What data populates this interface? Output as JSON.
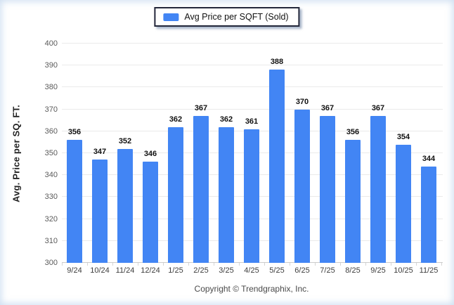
{
  "legend": {
    "label": "Avg Price per SQFT (Sold)",
    "swatch_color": "#4285f4"
  },
  "chart_data": {
    "type": "bar",
    "title": "Avg Price per SQFT (Sold)",
    "categories": [
      "9/24",
      "10/24",
      "11/24",
      "12/24",
      "1/25",
      "2/25",
      "3/25",
      "4/25",
      "5/25",
      "6/25",
      "7/25",
      "8/25",
      "9/25",
      "10/25",
      "11/25"
    ],
    "values": [
      356,
      347,
      352,
      346,
      362,
      367,
      362,
      361,
      388,
      370,
      367,
      356,
      367,
      354,
      344
    ],
    "xlabel": "",
    "ylabel": "Avg. Price per SQ. FT.",
    "ylim": [
      300,
      400
    ],
    "ytick_step": 10,
    "grid": "horizontal",
    "legend_position": "top-center",
    "bar_color": "#4285f4"
  },
  "footer": {
    "copyright": "Copyright © Trendgraphix, Inc."
  },
  "colors": {
    "bar": "#4285f4",
    "gridline": "#eaeaea",
    "axis_line": "#cccccc",
    "edge_vignette": "#a8c4e6"
  }
}
